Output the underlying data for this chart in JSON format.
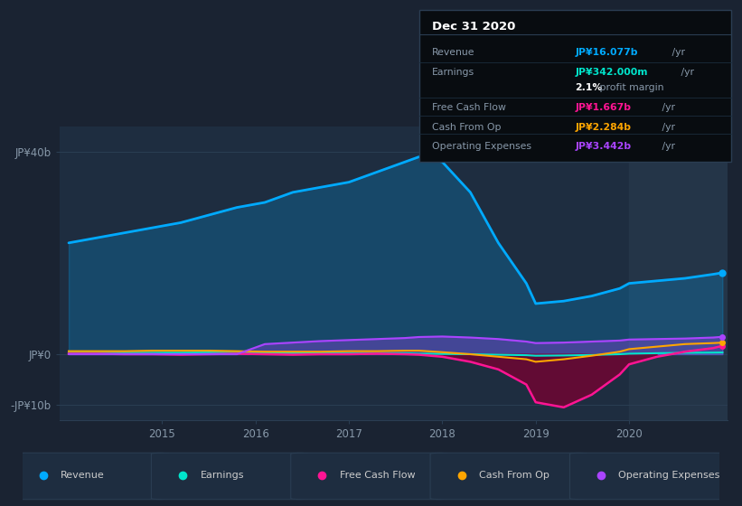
{
  "bg_color": "#1a2332",
  "plot_bg": "#1e2d40",
  "years": [
    2014.0,
    2014.3,
    2014.6,
    2014.9,
    2015.2,
    2015.5,
    2015.8,
    2016.1,
    2016.4,
    2016.7,
    2017.0,
    2017.3,
    2017.6,
    2017.75,
    2018.0,
    2018.3,
    2018.6,
    2018.9,
    2019.0,
    2019.3,
    2019.6,
    2019.9,
    2020.0,
    2020.3,
    2020.6,
    2020.9,
    2021.0
  ],
  "revenue": [
    22,
    23,
    24,
    25,
    26,
    27.5,
    29,
    30,
    32,
    33,
    34,
    36,
    38,
    39,
    38,
    32,
    22,
    14,
    10,
    10.5,
    11.5,
    13,
    14,
    14.5,
    15,
    15.8,
    16.1
  ],
  "earnings": [
    0.3,
    0.3,
    0.3,
    0.3,
    0.3,
    0.35,
    0.3,
    0.2,
    0.2,
    0.2,
    0.2,
    0.2,
    0.2,
    0.1,
    0.05,
    0.0,
    -0.1,
    -0.2,
    -0.3,
    -0.25,
    -0.15,
    0.0,
    0.1,
    0.2,
    0.28,
    0.32,
    0.34
  ],
  "fcf": [
    0.1,
    0.1,
    0.0,
    0.0,
    -0.1,
    0.0,
    0.1,
    0.0,
    -0.1,
    0.0,
    0.0,
    0.1,
    0.0,
    -0.1,
    -0.5,
    -1.5,
    -3.0,
    -6.0,
    -9.5,
    -10.5,
    -8.0,
    -4.0,
    -2.0,
    -0.5,
    0.5,
    1.2,
    1.67
  ],
  "cashop": [
    0.6,
    0.6,
    0.6,
    0.7,
    0.7,
    0.7,
    0.6,
    0.5,
    0.5,
    0.5,
    0.6,
    0.6,
    0.7,
    0.7,
    0.4,
    0.0,
    -0.5,
    -1.0,
    -1.5,
    -1.0,
    -0.3,
    0.5,
    1.0,
    1.5,
    2.0,
    2.2,
    2.28
  ],
  "opex": [
    0.0,
    0.0,
    0.0,
    0.0,
    0.0,
    0.0,
    0.0,
    2.0,
    2.3,
    2.6,
    2.8,
    3.0,
    3.2,
    3.4,
    3.5,
    3.3,
    3.0,
    2.5,
    2.2,
    2.3,
    2.5,
    2.7,
    2.9,
    3.0,
    3.1,
    3.3,
    3.44
  ],
  "ylim": [
    -13,
    45
  ],
  "yticks_vals": [
    -10,
    0,
    40
  ],
  "ytick_labels": [
    "-JP¥10b",
    "JP¥0",
    "JP¥40b"
  ],
  "xticks": [
    2015,
    2016,
    2017,
    2018,
    2019,
    2020
  ],
  "revenue_color": "#00aaff",
  "earnings_color": "#00e5cc",
  "fcf_color": "#ff1493",
  "cashop_color": "#ffa500",
  "opex_color": "#aa44ff",
  "legend_labels": [
    "Revenue",
    "Earnings",
    "Free Cash Flow",
    "Cash From Op",
    "Operating Expenses"
  ],
  "legend_colors": [
    "#00aaff",
    "#00e5cc",
    "#ff1493",
    "#ffa500",
    "#aa44ff"
  ],
  "info_title": "Dec 31 2020",
  "info_rows": [
    {
      "label": "Revenue",
      "value": "JP¥16.077b",
      "unit": " /yr",
      "vc": "#00aaff",
      "sep": true
    },
    {
      "label": "Earnings",
      "value": "JP¥342.000m",
      "unit": " /yr",
      "vc": "#00e5cc",
      "sep": false
    },
    {
      "label": "",
      "value": "2.1%",
      "unit": " profit margin",
      "vc": "#ffffff",
      "sep": true
    },
    {
      "label": "Free Cash Flow",
      "value": "JP¥1.667b",
      "unit": " /yr",
      "vc": "#ff1493",
      "sep": true
    },
    {
      "label": "Cash From Op",
      "value": "JP¥2.284b",
      "unit": " /yr",
      "vc": "#ffa500",
      "sep": true
    },
    {
      "label": "Operating Expenses",
      "value": "JP¥3.442b",
      "unit": " /yr",
      "vc": "#aa44ff",
      "sep": false
    }
  ]
}
